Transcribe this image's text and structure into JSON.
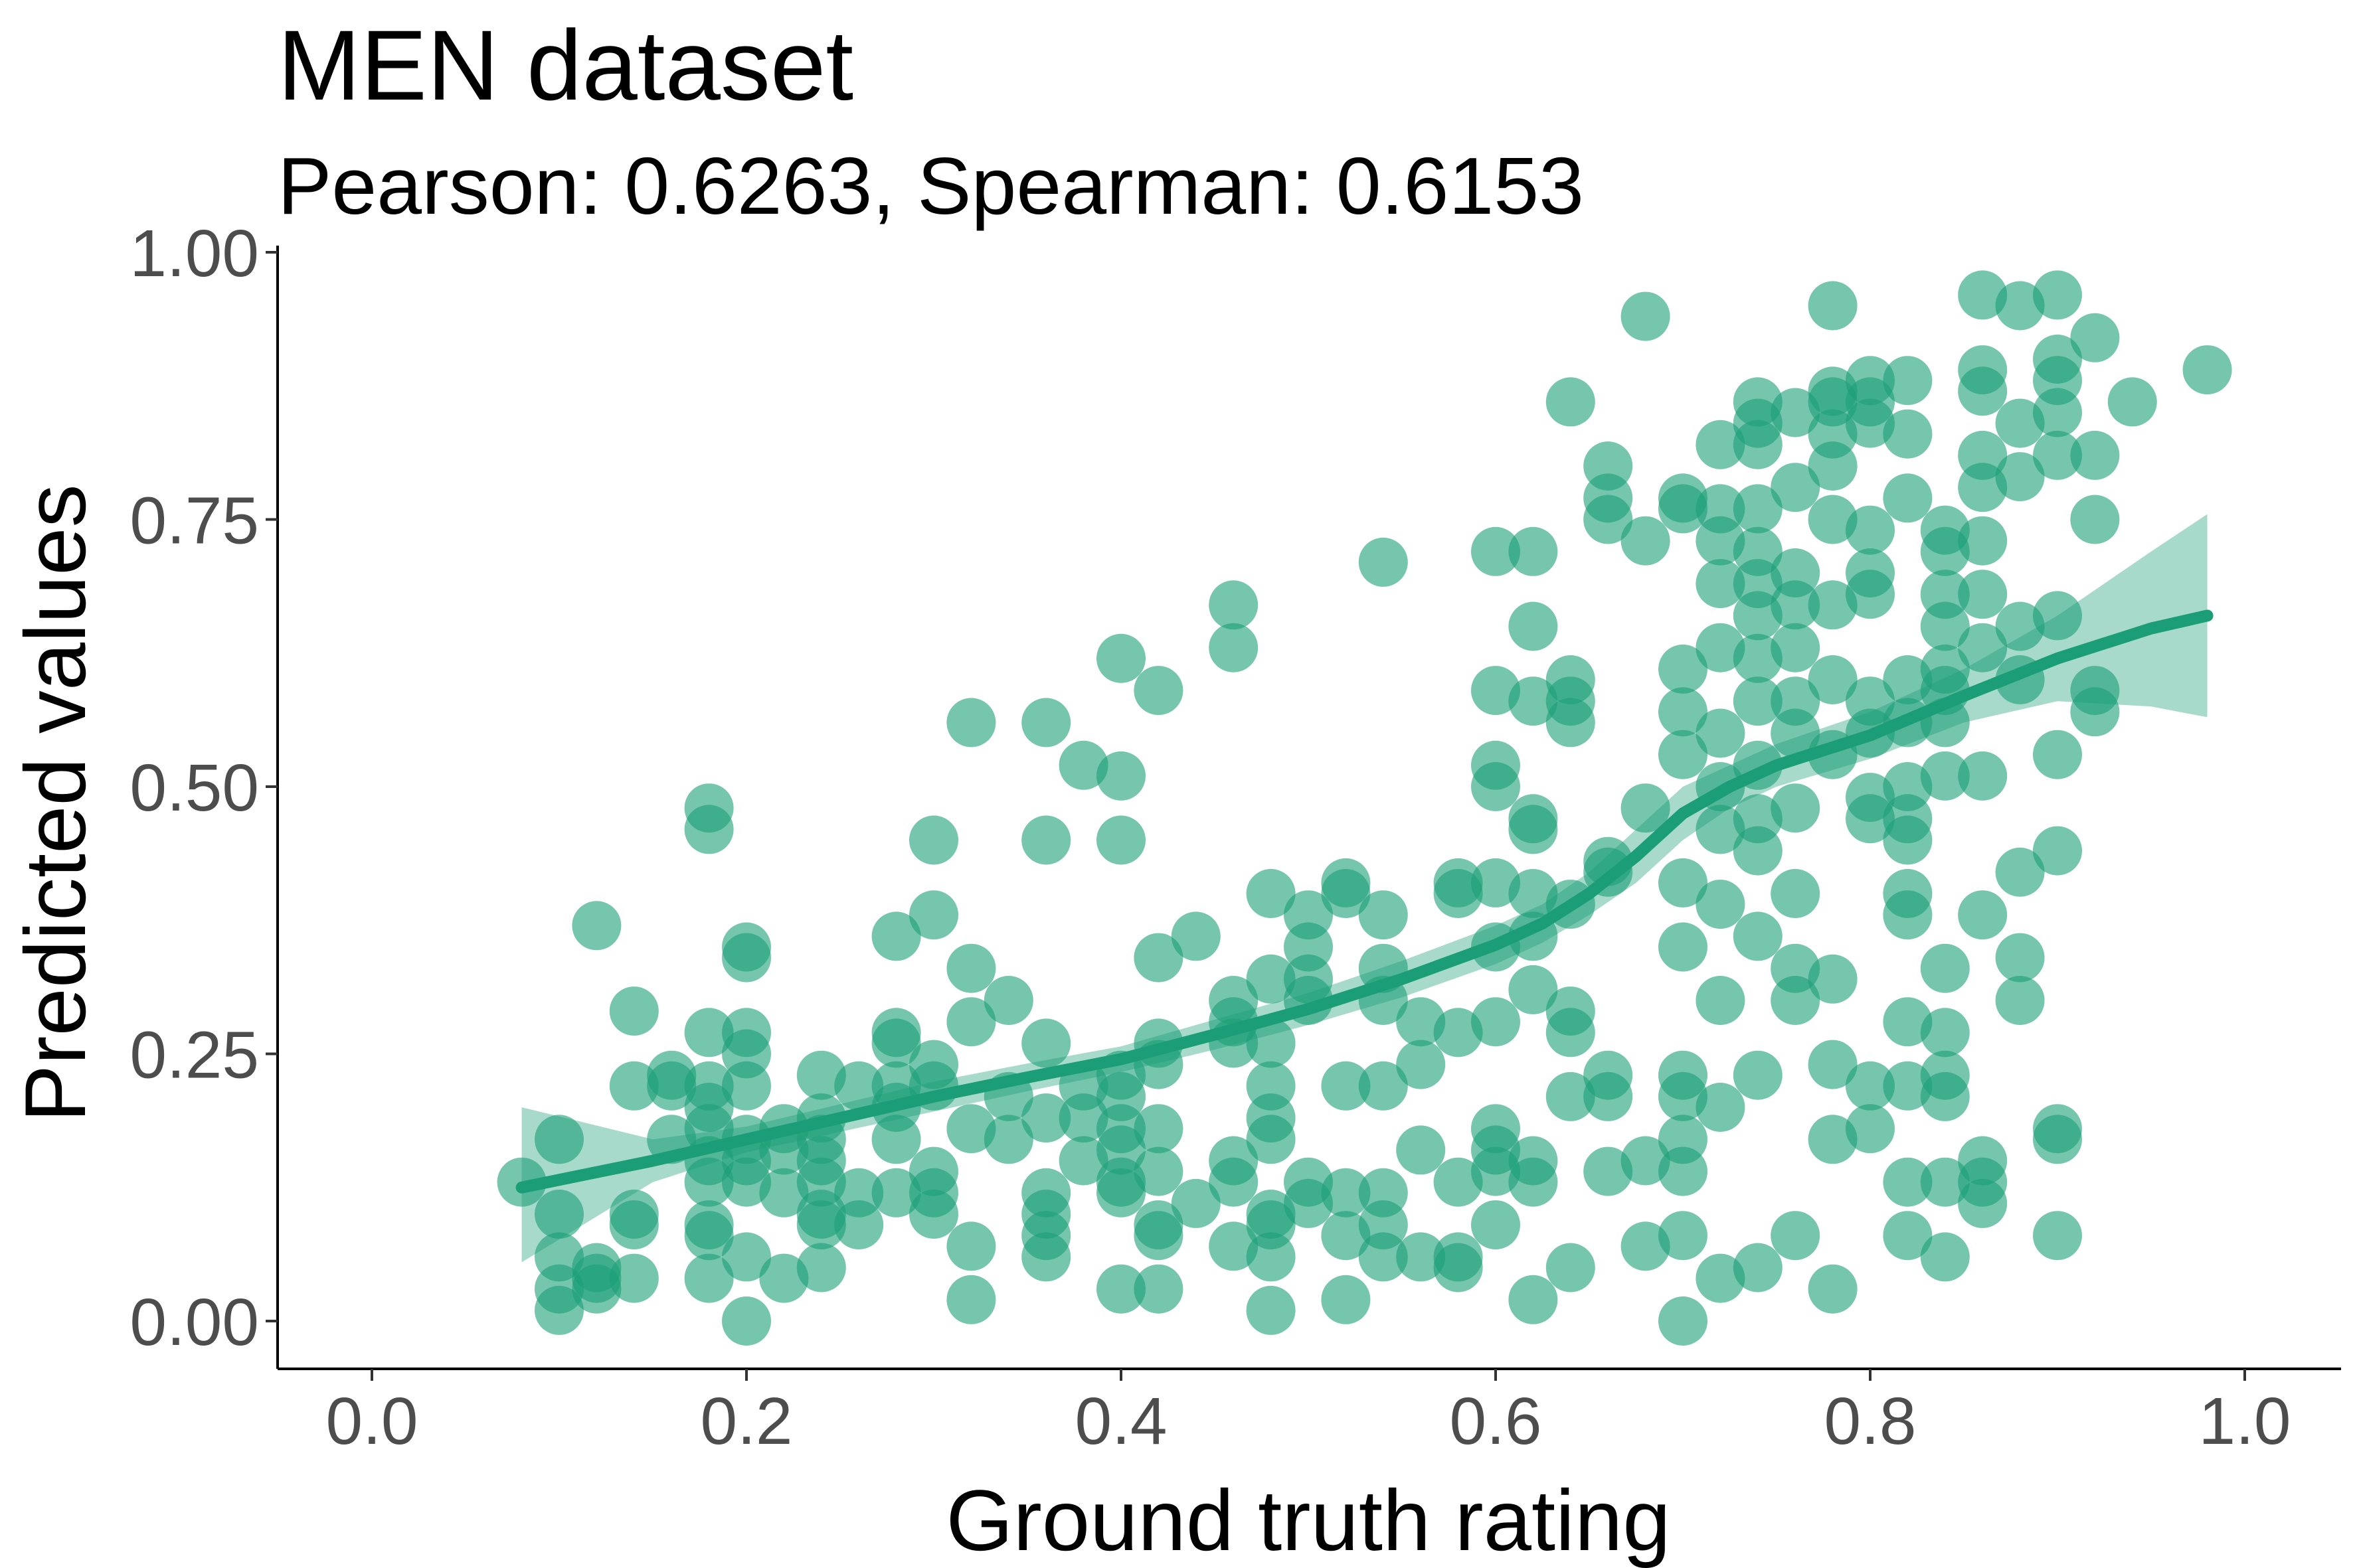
{
  "chart_data": {
    "type": "scatter",
    "title": "MEN dataset",
    "subtitle": "Pearson: 0.6263, Spearman: 0.6153",
    "xlabel": "Ground truth rating",
    "ylabel": "Predicted values",
    "xlim": [
      -0.05,
      1.05
    ],
    "ylim": [
      -0.09,
      1.02
    ],
    "x_ticks": [
      "0.0",
      "0.2",
      "0.4",
      "0.6",
      "0.8",
      "1.0"
    ],
    "x_tick_values": [
      0.0,
      0.2,
      0.4,
      0.6,
      0.8,
      1.0
    ],
    "y_ticks": [
      "0.00",
      "0.25",
      "0.50",
      "0.75",
      "1.00"
    ],
    "y_tick_values": [
      0.0,
      0.25,
      0.5,
      0.75,
      1.0
    ],
    "grid": false,
    "point_color": "#1b9e77",
    "point_alpha": 0.6,
    "smooth_color": "#1b9e77",
    "band_color": "#1b9e77",
    "points": [
      [
        0.08,
        0.13
      ],
      [
        0.1,
        0.17
      ],
      [
        0.1,
        0.1
      ],
      [
        0.1,
        0.06
      ],
      [
        0.1,
        0.03
      ],
      [
        0.1,
        0.01
      ],
      [
        0.12,
        0.37
      ],
      [
        0.12,
        0.05
      ],
      [
        0.12,
        0.03
      ],
      [
        0.12,
        0.04
      ],
      [
        0.14,
        0.29
      ],
      [
        0.14,
        0.22
      ],
      [
        0.14,
        0.1
      ],
      [
        0.14,
        0.09
      ],
      [
        0.14,
        0.04
      ],
      [
        0.16,
        0.23
      ],
      [
        0.16,
        0.22
      ],
      [
        0.16,
        0.17
      ],
      [
        0.18,
        0.48
      ],
      [
        0.18,
        0.46
      ],
      [
        0.18,
        0.27
      ],
      [
        0.18,
        0.22
      ],
      [
        0.18,
        0.2
      ],
      [
        0.18,
        0.18
      ],
      [
        0.18,
        0.15
      ],
      [
        0.18,
        0.13
      ],
      [
        0.18,
        0.09
      ],
      [
        0.18,
        0.08
      ],
      [
        0.18,
        0.04
      ],
      [
        0.2,
        0.35
      ],
      [
        0.2,
        0.34
      ],
      [
        0.2,
        0.27
      ],
      [
        0.2,
        0.25
      ],
      [
        0.2,
        0.22
      ],
      [
        0.2,
        0.17
      ],
      [
        0.2,
        0.15
      ],
      [
        0.2,
        0.13
      ],
      [
        0.2,
        0.06
      ],
      [
        0.2,
        0.0
      ],
      [
        0.22,
        0.18
      ],
      [
        0.22,
        0.16
      ],
      [
        0.22,
        0.12
      ],
      [
        0.22,
        0.04
      ],
      [
        0.24,
        0.23
      ],
      [
        0.24,
        0.19
      ],
      [
        0.24,
        0.17
      ],
      [
        0.24,
        0.15
      ],
      [
        0.24,
        0.13
      ],
      [
        0.24,
        0.1
      ],
      [
        0.24,
        0.09
      ],
      [
        0.24,
        0.05
      ],
      [
        0.26,
        0.22
      ],
      [
        0.26,
        0.12
      ],
      [
        0.26,
        0.09
      ],
      [
        0.28,
        0.36
      ],
      [
        0.28,
        0.27
      ],
      [
        0.28,
        0.26
      ],
      [
        0.28,
        0.22
      ],
      [
        0.28,
        0.2
      ],
      [
        0.28,
        0.17
      ],
      [
        0.28,
        0.12
      ],
      [
        0.3,
        0.45
      ],
      [
        0.3,
        0.38
      ],
      [
        0.3,
        0.24
      ],
      [
        0.3,
        0.22
      ],
      [
        0.3,
        0.14
      ],
      [
        0.3,
        0.12
      ],
      [
        0.3,
        0.1
      ],
      [
        0.32,
        0.56
      ],
      [
        0.32,
        0.33
      ],
      [
        0.32,
        0.28
      ],
      [
        0.32,
        0.18
      ],
      [
        0.32,
        0.07
      ],
      [
        0.32,
        0.02
      ],
      [
        0.34,
        0.3
      ],
      [
        0.34,
        0.21
      ],
      [
        0.34,
        0.17
      ],
      [
        0.36,
        0.56
      ],
      [
        0.36,
        0.45
      ],
      [
        0.36,
        0.26
      ],
      [
        0.36,
        0.19
      ],
      [
        0.36,
        0.12
      ],
      [
        0.36,
        0.1
      ],
      [
        0.36,
        0.08
      ],
      [
        0.36,
        0.06
      ],
      [
        0.38,
        0.52
      ],
      [
        0.38,
        0.22
      ],
      [
        0.38,
        0.19
      ],
      [
        0.38,
        0.15
      ],
      [
        0.4,
        0.62
      ],
      [
        0.4,
        0.51
      ],
      [
        0.4,
        0.45
      ],
      [
        0.4,
        0.23
      ],
      [
        0.4,
        0.21
      ],
      [
        0.4,
        0.18
      ],
      [
        0.4,
        0.16
      ],
      [
        0.4,
        0.13
      ],
      [
        0.4,
        0.12
      ],
      [
        0.4,
        0.03
      ],
      [
        0.42,
        0.59
      ],
      [
        0.42,
        0.34
      ],
      [
        0.42,
        0.26
      ],
      [
        0.42,
        0.24
      ],
      [
        0.42,
        0.18
      ],
      [
        0.42,
        0.14
      ],
      [
        0.42,
        0.09
      ],
      [
        0.42,
        0.08
      ],
      [
        0.42,
        0.03
      ],
      [
        0.44,
        0.36
      ],
      [
        0.44,
        0.11
      ],
      [
        0.46,
        0.67
      ],
      [
        0.46,
        0.63
      ],
      [
        0.46,
        0.3
      ],
      [
        0.46,
        0.28
      ],
      [
        0.46,
        0.26
      ],
      [
        0.46,
        0.15
      ],
      [
        0.46,
        0.13
      ],
      [
        0.46,
        0.07
      ],
      [
        0.48,
        0.4
      ],
      [
        0.48,
        0.32
      ],
      [
        0.48,
        0.26
      ],
      [
        0.48,
        0.22
      ],
      [
        0.48,
        0.19
      ],
      [
        0.48,
        0.17
      ],
      [
        0.48,
        0.1
      ],
      [
        0.48,
        0.09
      ],
      [
        0.48,
        0.06
      ],
      [
        0.48,
        0.01
      ],
      [
        0.5,
        0.38
      ],
      [
        0.5,
        0.35
      ],
      [
        0.5,
        0.32
      ],
      [
        0.5,
        0.3
      ],
      [
        0.5,
        0.13
      ],
      [
        0.5,
        0.11
      ],
      [
        0.52,
        0.41
      ],
      [
        0.52,
        0.4
      ],
      [
        0.52,
        0.22
      ],
      [
        0.52,
        0.12
      ],
      [
        0.52,
        0.08
      ],
      [
        0.52,
        0.02
      ],
      [
        0.54,
        0.71
      ],
      [
        0.54,
        0.38
      ],
      [
        0.54,
        0.33
      ],
      [
        0.54,
        0.3
      ],
      [
        0.54,
        0.22
      ],
      [
        0.54,
        0.12
      ],
      [
        0.54,
        0.09
      ],
      [
        0.54,
        0.06
      ],
      [
        0.56,
        0.28
      ],
      [
        0.56,
        0.24
      ],
      [
        0.56,
        0.16
      ],
      [
        0.56,
        0.06
      ],
      [
        0.58,
        0.41
      ],
      [
        0.58,
        0.4
      ],
      [
        0.58,
        0.27
      ],
      [
        0.58,
        0.13
      ],
      [
        0.58,
        0.06
      ],
      [
        0.58,
        0.05
      ],
      [
        0.6,
        0.72
      ],
      [
        0.6,
        0.59
      ],
      [
        0.6,
        0.52
      ],
      [
        0.6,
        0.5
      ],
      [
        0.6,
        0.41
      ],
      [
        0.6,
        0.35
      ],
      [
        0.6,
        0.28
      ],
      [
        0.6,
        0.18
      ],
      [
        0.6,
        0.16
      ],
      [
        0.6,
        0.14
      ],
      [
        0.6,
        0.09
      ],
      [
        0.62,
        0.72
      ],
      [
        0.62,
        0.65
      ],
      [
        0.62,
        0.58
      ],
      [
        0.62,
        0.47
      ],
      [
        0.62,
        0.46
      ],
      [
        0.62,
        0.4
      ],
      [
        0.62,
        0.36
      ],
      [
        0.62,
        0.31
      ],
      [
        0.62,
        0.15
      ],
      [
        0.62,
        0.13
      ],
      [
        0.62,
        0.02
      ],
      [
        0.64,
        0.86
      ],
      [
        0.64,
        0.6
      ],
      [
        0.64,
        0.58
      ],
      [
        0.64,
        0.56
      ],
      [
        0.64,
        0.39
      ],
      [
        0.64,
        0.29
      ],
      [
        0.64,
        0.27
      ],
      [
        0.64,
        0.21
      ],
      [
        0.64,
        0.05
      ],
      [
        0.66,
        0.8
      ],
      [
        0.66,
        0.77
      ],
      [
        0.66,
        0.75
      ],
      [
        0.66,
        0.43
      ],
      [
        0.66,
        0.42
      ],
      [
        0.66,
        0.23
      ],
      [
        0.66,
        0.21
      ],
      [
        0.66,
        0.14
      ],
      [
        0.68,
        0.94
      ],
      [
        0.68,
        0.73
      ],
      [
        0.68,
        0.48
      ],
      [
        0.68,
        0.15
      ],
      [
        0.68,
        0.07
      ],
      [
        0.7,
        0.77
      ],
      [
        0.7,
        0.76
      ],
      [
        0.7,
        0.61
      ],
      [
        0.7,
        0.57
      ],
      [
        0.7,
        0.53
      ],
      [
        0.7,
        0.41
      ],
      [
        0.7,
        0.35
      ],
      [
        0.7,
        0.23
      ],
      [
        0.7,
        0.21
      ],
      [
        0.7,
        0.17
      ],
      [
        0.7,
        0.14
      ],
      [
        0.7,
        0.08
      ],
      [
        0.7,
        0.0
      ],
      [
        0.72,
        0.82
      ],
      [
        0.72,
        0.76
      ],
      [
        0.72,
        0.73
      ],
      [
        0.72,
        0.69
      ],
      [
        0.72,
        0.63
      ],
      [
        0.72,
        0.55
      ],
      [
        0.72,
        0.5
      ],
      [
        0.72,
        0.46
      ],
      [
        0.72,
        0.39
      ],
      [
        0.72,
        0.3
      ],
      [
        0.72,
        0.2
      ],
      [
        0.72,
        0.04
      ],
      [
        0.74,
        0.86
      ],
      [
        0.74,
        0.84
      ],
      [
        0.74,
        0.82
      ],
      [
        0.74,
        0.76
      ],
      [
        0.74,
        0.72
      ],
      [
        0.74,
        0.69
      ],
      [
        0.74,
        0.66
      ],
      [
        0.74,
        0.62
      ],
      [
        0.74,
        0.58
      ],
      [
        0.74,
        0.52
      ],
      [
        0.74,
        0.47
      ],
      [
        0.74,
        0.44
      ],
      [
        0.74,
        0.36
      ],
      [
        0.74,
        0.23
      ],
      [
        0.74,
        0.05
      ],
      [
        0.76,
        0.85
      ],
      [
        0.76,
        0.78
      ],
      [
        0.76,
        0.7
      ],
      [
        0.76,
        0.67
      ],
      [
        0.76,
        0.63
      ],
      [
        0.76,
        0.58
      ],
      [
        0.76,
        0.55
      ],
      [
        0.76,
        0.48
      ],
      [
        0.76,
        0.4
      ],
      [
        0.76,
        0.33
      ],
      [
        0.76,
        0.3
      ],
      [
        0.76,
        0.08
      ],
      [
        0.78,
        0.95
      ],
      [
        0.78,
        0.87
      ],
      [
        0.78,
        0.86
      ],
      [
        0.78,
        0.83
      ],
      [
        0.78,
        0.8
      ],
      [
        0.78,
        0.75
      ],
      [
        0.78,
        0.67
      ],
      [
        0.78,
        0.6
      ],
      [
        0.78,
        0.53
      ],
      [
        0.78,
        0.32
      ],
      [
        0.78,
        0.24
      ],
      [
        0.78,
        0.17
      ],
      [
        0.78,
        0.03
      ],
      [
        0.8,
        0.88
      ],
      [
        0.8,
        0.86
      ],
      [
        0.8,
        0.84
      ],
      [
        0.8,
        0.74
      ],
      [
        0.8,
        0.7
      ],
      [
        0.8,
        0.68
      ],
      [
        0.8,
        0.58
      ],
      [
        0.8,
        0.55
      ],
      [
        0.8,
        0.49
      ],
      [
        0.8,
        0.47
      ],
      [
        0.8,
        0.22
      ],
      [
        0.8,
        0.18
      ],
      [
        0.82,
        0.88
      ],
      [
        0.82,
        0.83
      ],
      [
        0.82,
        0.77
      ],
      [
        0.82,
        0.6
      ],
      [
        0.82,
        0.56
      ],
      [
        0.82,
        0.5
      ],
      [
        0.82,
        0.47
      ],
      [
        0.82,
        0.45
      ],
      [
        0.82,
        0.4
      ],
      [
        0.82,
        0.38
      ],
      [
        0.82,
        0.28
      ],
      [
        0.82,
        0.22
      ],
      [
        0.82,
        0.13
      ],
      [
        0.82,
        0.08
      ],
      [
        0.84,
        0.74
      ],
      [
        0.84,
        0.72
      ],
      [
        0.84,
        0.68
      ],
      [
        0.84,
        0.65
      ],
      [
        0.84,
        0.61
      ],
      [
        0.84,
        0.59
      ],
      [
        0.84,
        0.56
      ],
      [
        0.84,
        0.51
      ],
      [
        0.84,
        0.33
      ],
      [
        0.84,
        0.27
      ],
      [
        0.84,
        0.23
      ],
      [
        0.84,
        0.21
      ],
      [
        0.84,
        0.13
      ],
      [
        0.84,
        0.06
      ],
      [
        0.86,
        0.96
      ],
      [
        0.86,
        0.89
      ],
      [
        0.86,
        0.87
      ],
      [
        0.86,
        0.81
      ],
      [
        0.86,
        0.78
      ],
      [
        0.86,
        0.73
      ],
      [
        0.86,
        0.68
      ],
      [
        0.86,
        0.63
      ],
      [
        0.86,
        0.51
      ],
      [
        0.86,
        0.38
      ],
      [
        0.86,
        0.15
      ],
      [
        0.86,
        0.13
      ],
      [
        0.86,
        0.11
      ],
      [
        0.88,
        0.95
      ],
      [
        0.88,
        0.84
      ],
      [
        0.88,
        0.79
      ],
      [
        0.88,
        0.65
      ],
      [
        0.88,
        0.6
      ],
      [
        0.88,
        0.42
      ],
      [
        0.88,
        0.34
      ],
      [
        0.88,
        0.3
      ],
      [
        0.9,
        0.96
      ],
      [
        0.9,
        0.9
      ],
      [
        0.9,
        0.88
      ],
      [
        0.9,
        0.85
      ],
      [
        0.9,
        0.81
      ],
      [
        0.9,
        0.66
      ],
      [
        0.9,
        0.53
      ],
      [
        0.9,
        0.44
      ],
      [
        0.9,
        0.18
      ],
      [
        0.9,
        0.17
      ],
      [
        0.9,
        0.08
      ],
      [
        0.92,
        0.92
      ],
      [
        0.92,
        0.81
      ],
      [
        0.92,
        0.75
      ],
      [
        0.92,
        0.59
      ],
      [
        0.92,
        0.57
      ],
      [
        0.94,
        0.86
      ],
      [
        0.98,
        0.89
      ]
    ],
    "smooth_line": [
      [
        0.08,
        0.125
      ],
      [
        0.15,
        0.15
      ],
      [
        0.2,
        0.17
      ],
      [
        0.25,
        0.19
      ],
      [
        0.3,
        0.21
      ],
      [
        0.35,
        0.228
      ],
      [
        0.4,
        0.245
      ],
      [
        0.45,
        0.268
      ],
      [
        0.5,
        0.292
      ],
      [
        0.55,
        0.32
      ],
      [
        0.6,
        0.352
      ],
      [
        0.625,
        0.372
      ],
      [
        0.65,
        0.4
      ],
      [
        0.675,
        0.435
      ],
      [
        0.7,
        0.475
      ],
      [
        0.725,
        0.5
      ],
      [
        0.75,
        0.52
      ],
      [
        0.8,
        0.548
      ],
      [
        0.85,
        0.585
      ],
      [
        0.9,
        0.62
      ],
      [
        0.95,
        0.648
      ],
      [
        0.98,
        0.66
      ]
    ],
    "confidence_band": {
      "x": [
        0.08,
        0.15,
        0.2,
        0.25,
        0.3,
        0.35,
        0.4,
        0.45,
        0.5,
        0.55,
        0.6,
        0.625,
        0.65,
        0.675,
        0.7,
        0.725,
        0.75,
        0.8,
        0.85,
        0.9,
        0.95,
        0.98
      ],
      "upper": [
        0.2,
        0.17,
        0.182,
        0.203,
        0.224,
        0.241,
        0.257,
        0.282,
        0.307,
        0.337,
        0.37,
        0.39,
        0.42,
        0.46,
        0.5,
        0.52,
        0.54,
        0.57,
        0.61,
        0.66,
        0.72,
        0.755
      ],
      "lower": [
        0.055,
        0.13,
        0.158,
        0.177,
        0.196,
        0.215,
        0.233,
        0.254,
        0.277,
        0.303,
        0.334,
        0.354,
        0.38,
        0.41,
        0.45,
        0.48,
        0.5,
        0.526,
        0.56,
        0.58,
        0.575,
        0.565
      ]
    }
  }
}
